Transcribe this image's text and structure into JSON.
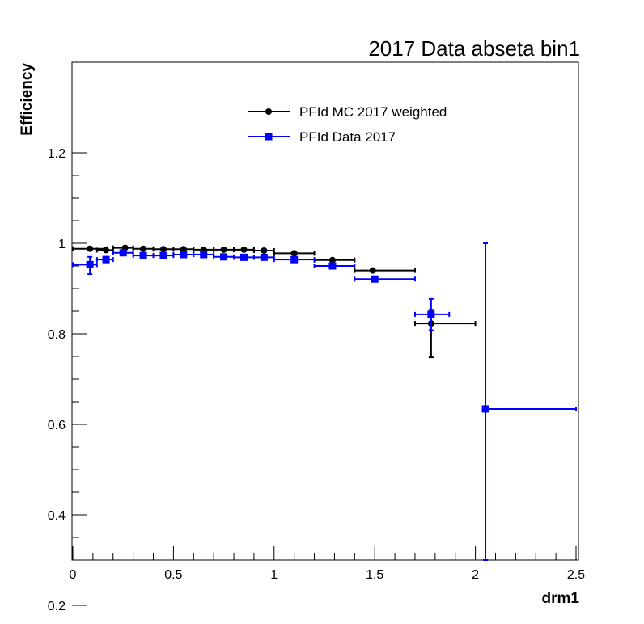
{
  "chart_data": {
    "type": "scatter",
    "title": "2017 Data abseta bin1",
    "xlabel": "drm1",
    "ylabel": "Efficiency",
    "xlim": [
      0,
      2.5
    ],
    "ylim": [
      0.1,
      1.2
    ],
    "x_ticks": [
      "0",
      "0.5",
      "1",
      "1.5",
      "2",
      "2.5"
    ],
    "y_ticks": [
      "0.2",
      "0.4",
      "0.6",
      "0.8",
      "1",
      "1.2"
    ],
    "grid": false,
    "legend_position": "top-center",
    "series": [
      {
        "name": "PFId MC 2017 weighted",
        "color": "#000000",
        "marker": "circle",
        "points": [
          {
            "x": 0.085,
            "y": 0.988,
            "xlo": 0.0,
            "xhi": 0.17,
            "ylo": 0.984,
            "yhi": 0.992
          },
          {
            "x": 0.165,
            "y": 0.985,
            "xlo": 0.12,
            "xhi": 0.2,
            "ylo": 0.982,
            "yhi": 0.988
          },
          {
            "x": 0.26,
            "y": 0.99,
            "xlo": 0.2,
            "xhi": 0.3,
            "ylo": 0.988,
            "yhi": 0.992
          },
          {
            "x": 0.35,
            "y": 0.988,
            "xlo": 0.3,
            "xhi": 0.4,
            "ylo": 0.986,
            "yhi": 0.99
          },
          {
            "x": 0.45,
            "y": 0.987,
            "xlo": 0.4,
            "xhi": 0.5,
            "ylo": 0.985,
            "yhi": 0.989
          },
          {
            "x": 0.55,
            "y": 0.987,
            "xlo": 0.5,
            "xhi": 0.6,
            "ylo": 0.985,
            "yhi": 0.989
          },
          {
            "x": 0.65,
            "y": 0.986,
            "xlo": 0.6,
            "xhi": 0.7,
            "ylo": 0.984,
            "yhi": 0.988
          },
          {
            "x": 0.75,
            "y": 0.986,
            "xlo": 0.7,
            "xhi": 0.8,
            "ylo": 0.984,
            "yhi": 0.988
          },
          {
            "x": 0.85,
            "y": 0.986,
            "xlo": 0.8,
            "xhi": 0.9,
            "ylo": 0.984,
            "yhi": 0.988
          },
          {
            "x": 0.95,
            "y": 0.984,
            "xlo": 0.9,
            "xhi": 1.0,
            "ylo": 0.982,
            "yhi": 0.986
          },
          {
            "x": 1.1,
            "y": 0.978,
            "xlo": 1.0,
            "xhi": 1.2,
            "ylo": 0.976,
            "yhi": 0.98
          },
          {
            "x": 1.29,
            "y": 0.963,
            "xlo": 1.2,
            "xhi": 1.4,
            "ylo": 0.96,
            "yhi": 0.966
          },
          {
            "x": 1.49,
            "y": 0.94,
            "xlo": 1.4,
            "xhi": 1.7,
            "ylo": 0.936,
            "yhi": 0.944
          },
          {
            "x": 1.78,
            "y": 0.823,
            "xlo": 1.7,
            "xhi": 2.0,
            "ylo": 0.748,
            "yhi": 0.853
          }
        ]
      },
      {
        "name": "PFId Data 2017",
        "color": "#0000ff",
        "marker": "square",
        "points": [
          {
            "x": 0.085,
            "y": 0.953,
            "xlo": 0.0,
            "xhi": 0.12,
            "ylo": 0.932,
            "yhi": 0.97
          },
          {
            "x": 0.165,
            "y": 0.964,
            "xlo": 0.12,
            "xhi": 0.2,
            "ylo": 0.958,
            "yhi": 0.97
          },
          {
            "x": 0.25,
            "y": 0.979,
            "xlo": 0.2,
            "xhi": 0.3,
            "ylo": 0.975,
            "yhi": 0.983
          },
          {
            "x": 0.35,
            "y": 0.973,
            "xlo": 0.3,
            "xhi": 0.4,
            "ylo": 0.97,
            "yhi": 0.976
          },
          {
            "x": 0.45,
            "y": 0.973,
            "xlo": 0.4,
            "xhi": 0.5,
            "ylo": 0.97,
            "yhi": 0.976
          },
          {
            "x": 0.55,
            "y": 0.975,
            "xlo": 0.5,
            "xhi": 0.6,
            "ylo": 0.972,
            "yhi": 0.978
          },
          {
            "x": 0.65,
            "y": 0.975,
            "xlo": 0.6,
            "xhi": 0.7,
            "ylo": 0.972,
            "yhi": 0.978
          },
          {
            "x": 0.75,
            "y": 0.97,
            "xlo": 0.7,
            "xhi": 0.8,
            "ylo": 0.967,
            "yhi": 0.973
          },
          {
            "x": 0.85,
            "y": 0.969,
            "xlo": 0.8,
            "xhi": 0.9,
            "ylo": 0.966,
            "yhi": 0.972
          },
          {
            "x": 0.95,
            "y": 0.969,
            "xlo": 0.9,
            "xhi": 1.0,
            "ylo": 0.966,
            "yhi": 0.972
          },
          {
            "x": 1.1,
            "y": 0.964,
            "xlo": 1.0,
            "xhi": 1.2,
            "ylo": 0.961,
            "yhi": 0.967
          },
          {
            "x": 1.29,
            "y": 0.95,
            "xlo": 1.2,
            "xhi": 1.4,
            "ylo": 0.946,
            "yhi": 0.954
          },
          {
            "x": 1.5,
            "y": 0.921,
            "xlo": 1.4,
            "xhi": 1.7,
            "ylo": 0.917,
            "yhi": 0.925
          },
          {
            "x": 1.78,
            "y": 0.843,
            "xlo": 1.7,
            "xhi": 1.87,
            "ylo": 0.808,
            "yhi": 0.877
          },
          {
            "x": 2.05,
            "y": 0.634,
            "xlo": 2.05,
            "xhi": 2.5,
            "ylo": 0.201,
            "yhi": 1.0
          }
        ]
      }
    ]
  }
}
